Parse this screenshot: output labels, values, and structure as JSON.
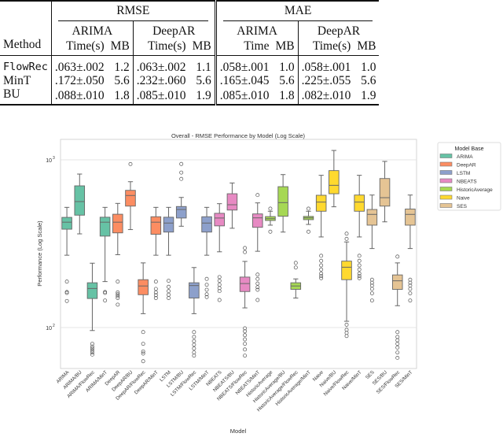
{
  "table": {
    "group_headers": [
      "RMSE",
      "MAE"
    ],
    "model_headers": [
      "ARIMA",
      "DeepAR",
      "ARIMA",
      "DeepAR"
    ],
    "method_header": "Method",
    "sub_headers": [
      [
        "Time(s)",
        "MB"
      ],
      [
        "Time(s)",
        "MB"
      ],
      [
        "Time",
        "MB"
      ],
      [
        "Time(s)",
        "MB"
      ]
    ],
    "rows": [
      {
        "method": "FlowRec",
        "bold": true,
        "cells": [
          ".063±.002",
          "1.2",
          ".063±.002",
          "1.1",
          ".058±.001",
          "1.0",
          ".058±.001",
          "1.0"
        ]
      },
      {
        "method": "MinT",
        "bold": false,
        "cells": [
          ".172±.050",
          "5.6",
          ".232±.060",
          "5.6",
          ".165±.045",
          "5.6",
          ".225±.055",
          "5.6"
        ]
      },
      {
        "method": "BU",
        "bold": false,
        "cells": [
          ".088±.010",
          "1.8",
          ".085±.010",
          "1.9",
          ".085±.010",
          "1.8",
          ".082±.010",
          "1.9"
        ]
      }
    ]
  },
  "chart_data": {
    "type": "box",
    "title": "Overall - RMSE Performance by Model (Log Scale)",
    "xlabel": "Model",
    "ylabel": "Performance (Log Scale)",
    "yscale": "log",
    "ylim": [
      57,
      1325
    ],
    "yticks": [
      {
        "value": 100,
        "label": "10",
        "exp": "2"
      },
      {
        "value": 1000,
        "label": "10",
        "exp": "3"
      }
    ],
    "grid": "horizontal-major",
    "legend": {
      "title": "Model Base",
      "placement": "outside-right",
      "entries": [
        {
          "name": "ARIMA",
          "color": "#66c2a5"
        },
        {
          "name": "DeepAR",
          "color": "#fc8d62"
        },
        {
          "name": "LSTM",
          "color": "#8da0cb"
        },
        {
          "name": "NBEATS",
          "color": "#e78ac3"
        },
        {
          "name": "HistoricAverage",
          "color": "#a6d854"
        },
        {
          "name": "Naive",
          "color": "#ffd92f"
        },
        {
          "name": "SES",
          "color": "#e5c494"
        }
      ]
    },
    "boxes": [
      {
        "category": "ARIMA",
        "base": "ARIMA",
        "whislo": 270,
        "q1": 386,
        "med": 425,
        "q3": 454,
        "whishi": 521,
        "fliers": [
          188,
          163,
          161,
          144
        ]
      },
      {
        "category": "ARIMA/BU",
        "base": "ARIMA",
        "whislo": 362,
        "q1": 468,
        "med": 564,
        "q3": 700,
        "whishi": 823,
        "fliers": []
      },
      {
        "category": "ARIMA/FlowRec",
        "base": "ARIMA",
        "whislo": 96,
        "q1": 149,
        "med": 171,
        "q3": 185,
        "whishi": 242,
        "fliers": [
          80,
          77,
          75,
          73,
          71,
          69
        ]
      },
      {
        "category": "ARIMA/MinT",
        "base": "ARIMA",
        "whislo": 188,
        "q1": 351,
        "med": 425,
        "q3": 455,
        "whishi": 521,
        "fliers": [
          163,
          161,
          145
        ]
      },
      {
        "category": "DeepAR",
        "base": "DeepAR",
        "whislo": 272,
        "q1": 367,
        "med": 425,
        "q3": 474,
        "whishi": 550,
        "fliers": [
          188,
          162,
          158,
          154,
          150,
          137
        ]
      },
      {
        "category": "DeepAR/BU",
        "base": "DeepAR",
        "whislo": 384,
        "q1": 530,
        "med": 613,
        "q3": 658,
        "whishi": 741,
        "fliers": [
          944
        ]
      },
      {
        "category": "DeepAR/FlowRec",
        "base": "DeepAR",
        "whislo": 121,
        "q1": 157,
        "med": 177,
        "q3": 193,
        "whishi": 243,
        "fliers": [
          94,
          80,
          72,
          70,
          63
        ]
      },
      {
        "category": "DeepAR/MinT",
        "base": "DeepAR",
        "whislo": 270,
        "q1": 360,
        "med": 425,
        "q3": 458,
        "whishi": 521,
        "fliers": [
          188,
          170,
          162,
          156,
          150
        ]
      },
      {
        "category": "LSTM",
        "base": "LSTM",
        "whislo": 270,
        "q1": 371,
        "med": 420,
        "q3": 455,
        "whishi": 521,
        "fliers": [
          190,
          175,
          165,
          157,
          150
        ]
      },
      {
        "category": "LSTM/BU",
        "base": "LSTM",
        "whislo": 402,
        "q1": 450,
        "med": 506,
        "q3": 527,
        "whishi": 597,
        "fliers": [
          945,
          840,
          770
        ]
      },
      {
        "category": "LSTM/FlowRec",
        "base": "LSTM",
        "whislo": 121,
        "q1": 150,
        "med": 178,
        "q3": 185,
        "whishi": 228,
        "fliers": [
          94,
          88,
          83,
          79,
          75,
          71,
          68
        ]
      },
      {
        "category": "LSTM/MinT",
        "base": "LSTM",
        "whislo": 270,
        "q1": 371,
        "med": 420,
        "q3": 458,
        "whishi": 521,
        "fliers": [
          195,
          180,
          168,
          158,
          152
        ]
      },
      {
        "category": "NBEATS",
        "base": "NBEATS",
        "whislo": 283,
        "q1": 404,
        "med": 450,
        "q3": 480,
        "whishi": 548,
        "fliers": [
          200,
          190,
          180,
          172,
          165,
          146
        ]
      },
      {
        "category": "NBEATS/BU",
        "base": "NBEATS",
        "whislo": 391,
        "q1": 502,
        "med": 540,
        "q3": 628,
        "whishi": 728,
        "fliers": []
      },
      {
        "category": "NBEATS/FlowRec",
        "base": "NBEATS",
        "whislo": 131,
        "q1": 164,
        "med": 183,
        "q3": 200,
        "whishi": 248,
        "fliers": [
          298,
          282,
          99,
          95,
          90,
          85,
          80,
          74,
          68
        ]
      },
      {
        "category": "NBEATS/MinT",
        "base": "NBEATS",
        "whislo": 285,
        "q1": 396,
        "med": 451,
        "q3": 476,
        "whishi": 554,
        "fliers": [
          617,
          207,
          195,
          183,
          174,
          168,
          146
        ]
      },
      {
        "category": "HistoricAverage",
        "base": "HistoricAverage",
        "whislo": 408,
        "q1": 435,
        "med": 446,
        "q3": 459,
        "whishi": 494,
        "fliers": [
          512,
          373
        ]
      },
      {
        "category": "HistoricAverage/BU",
        "base": "HistoricAverage",
        "whislo": 371,
        "q1": 461,
        "med": 556,
        "q3": 692,
        "whishi": 817,
        "fliers": []
      },
      {
        "category": "HistoricAverage/FlowRec",
        "base": "HistoricAverage",
        "whislo": 150,
        "q1": 169,
        "med": 177,
        "q3": 185,
        "whishi": 195,
        "fliers": [
          243,
          228
        ]
      },
      {
        "category": "HistoricAverage/MinT",
        "base": "HistoricAverage",
        "whislo": 412,
        "q1": 440,
        "med": 451,
        "q3": 460,
        "whishi": 494,
        "fliers": [
          512,
          373
        ]
      },
      {
        "category": "Naive",
        "base": "Naive",
        "whislo": 347,
        "q1": 494,
        "med": 560,
        "q3": 615,
        "whishi": 809,
        "fliers": [
          268,
          250,
          235,
          222,
          210,
          203,
          197
        ]
      },
      {
        "category": "Naive/BU",
        "base": "Naive",
        "whislo": 525,
        "q1": 628,
        "med": 705,
        "q3": 863,
        "whishi": 1138,
        "fliers": []
      },
      {
        "category": "Naive/FlowRec",
        "base": "Naive",
        "whislo": 109,
        "q1": 193,
        "med": 229,
        "q3": 249,
        "whishi": 324,
        "fliers": [
          363,
          338,
          104,
          97,
          93,
          89
        ]
      },
      {
        "category": "Naive/MinT",
        "base": "Naive",
        "whislo": 347,
        "q1": 494,
        "med": 560,
        "q3": 617,
        "whishi": 809,
        "fliers": [
          268,
          250,
          235,
          222,
          210,
          203,
          197
        ]
      },
      {
        "category": "SES",
        "base": "SES",
        "whislo": 296,
        "q1": 408,
        "med": 473,
        "q3": 506,
        "whishi": 617,
        "fliers": [
          193,
          185,
          178,
          170,
          160,
          145
        ]
      },
      {
        "category": "SES/BU",
        "base": "SES",
        "whislo": 427,
        "q1": 530,
        "med": 595,
        "q3": 774,
        "whishi": 979,
        "fliers": []
      },
      {
        "category": "SES/FlowRec",
        "base": "SES",
        "whislo": 135,
        "q1": 169,
        "med": 190,
        "q3": 206,
        "whishi": 243,
        "fliers": [
          265,
          94,
          88,
          84,
          80,
          76,
          71,
          66
        ]
      },
      {
        "category": "SES/MinT",
        "base": "SES",
        "whislo": 296,
        "q1": 408,
        "med": 473,
        "q3": 509,
        "whishi": 617,
        "fliers": [
          193,
          185,
          178,
          170,
          160,
          145
        ]
      }
    ]
  }
}
